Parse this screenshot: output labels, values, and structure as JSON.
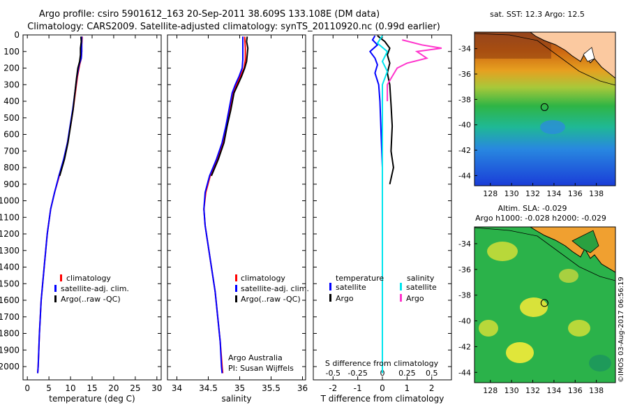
{
  "header": {
    "line1": "Argo profile: csiro 5901612_163 20-Sep-2011 38.609S 133.108E (DM data)",
    "line2": "Climatology: CARS2009. Satellite-adjusted climatology: synTS_20110920.nc (0.99d earlier)"
  },
  "copyright": "©IMOS 03-Aug-2017 06:56:19",
  "colors": {
    "climatology": "#ff0000",
    "satellite": "#0000ff",
    "argo": "#000000",
    "argo_salinity_diff": "#ff33cc",
    "satellite_salinity_diff": "#00e5ee"
  },
  "chart_data": [
    {
      "type": "line",
      "id": "temperature",
      "xlabel": "temperature (deg C)",
      "xlim": [
        -1,
        31
      ],
      "xticks": [
        0,
        5,
        10,
        15,
        20,
        25,
        30
      ],
      "ylim": [
        2080,
        0
      ],
      "yticks": [
        0,
        100,
        200,
        300,
        400,
        500,
        600,
        700,
        800,
        900,
        1000,
        1100,
        1200,
        1300,
        1400,
        1500,
        1600,
        1700,
        1800,
        1900,
        2000
      ],
      "legend": [
        "climatology",
        "satellite-adj. clim.",
        "Argo(..raw -QC)"
      ],
      "series": [
        {
          "name": "climatology",
          "points": [
            [
              12.7,
              10
            ],
            [
              12.6,
              60
            ],
            [
              12.6,
              100
            ],
            [
              12.5,
              140
            ],
            [
              12.1,
              180
            ],
            [
              11.6,
              250
            ],
            [
              11.1,
              350
            ],
            [
              10.6,
              450
            ],
            [
              10.0,
              550
            ],
            [
              9.3,
              650
            ],
            [
              8.5,
              750
            ],
            [
              7.4,
              850
            ],
            [
              6.3,
              950
            ],
            [
              5.4,
              1050
            ],
            [
              4.6,
              1200
            ],
            [
              3.9,
              1400
            ],
            [
              3.2,
              1600
            ],
            [
              2.8,
              1800
            ],
            [
              2.5,
              2000
            ],
            [
              2.4,
              2040
            ]
          ]
        },
        {
          "name": "satellite-adj. clim.",
          "points": [
            [
              12.6,
              10
            ],
            [
              12.6,
              60
            ],
            [
              12.6,
              100
            ],
            [
              12.5,
              140
            ],
            [
              12.0,
              180
            ],
            [
              11.5,
              250
            ],
            [
              11.0,
              350
            ],
            [
              10.5,
              450
            ],
            [
              9.9,
              550
            ],
            [
              9.3,
              650
            ],
            [
              8.4,
              750
            ],
            [
              7.3,
              850
            ],
            [
              6.3,
              950
            ],
            [
              5.4,
              1050
            ],
            [
              4.6,
              1200
            ],
            [
              3.9,
              1400
            ],
            [
              3.2,
              1600
            ],
            [
              2.8,
              1800
            ],
            [
              2.5,
              2000
            ],
            [
              2.4,
              2040
            ]
          ]
        },
        {
          "name": "Argo(..raw -QC)",
          "points": [
            [
              12.4,
              10
            ],
            [
              12.5,
              40
            ],
            [
              12.3,
              80
            ],
            [
              12.3,
              120
            ],
            [
              12.1,
              160
            ],
            [
              11.7,
              200
            ],
            [
              11.4,
              260
            ],
            [
              11.0,
              350
            ],
            [
              10.6,
              450
            ],
            [
              10.0,
              550
            ],
            [
              9.4,
              650
            ],
            [
              8.6,
              750
            ],
            [
              7.5,
              850
            ]
          ]
        }
      ]
    },
    {
      "type": "line",
      "id": "salinity",
      "xlabel": "salinity",
      "xlim": [
        33.85,
        36.05
      ],
      "xticks": [
        34,
        34.5,
        35,
        35.5,
        36
      ],
      "xticklabels": [
        "34",
        "34.5",
        "35",
        "35.5",
        "36"
      ],
      "ylim": [
        2080,
        0
      ],
      "legend": [
        "climatology",
        "satellite-adj. clim.",
        "Argo(..raw -QC)"
      ],
      "annotation": [
        "Argo Australia",
        "PI: Susan Wijffels"
      ],
      "series": [
        {
          "name": "climatology",
          "points": [
            [
              35.08,
              10
            ],
            [
              35.09,
              80
            ],
            [
              35.09,
              150
            ],
            [
              35.07,
              200
            ],
            [
              35.01,
              250
            ],
            [
              34.95,
              300
            ],
            [
              34.89,
              350
            ],
            [
              34.84,
              450
            ],
            [
              34.79,
              550
            ],
            [
              34.73,
              650
            ],
            [
              34.64,
              750
            ],
            [
              34.53,
              850
            ],
            [
              34.46,
              950
            ],
            [
              34.43,
              1050
            ],
            [
              34.45,
              1150
            ],
            [
              34.49,
              1250
            ],
            [
              34.55,
              1400
            ],
            [
              34.61,
              1550
            ],
            [
              34.65,
              1700
            ],
            [
              34.69,
              1850
            ],
            [
              34.72,
              2000
            ],
            [
              34.73,
              2040
            ]
          ]
        },
        {
          "name": "satellite-adj. clim.",
          "points": [
            [
              35.05,
              10
            ],
            [
              35.05,
              80
            ],
            [
              35.05,
              150
            ],
            [
              35.04,
              200
            ],
            [
              34.99,
              250
            ],
            [
              34.93,
              300
            ],
            [
              34.88,
              350
            ],
            [
              34.83,
              450
            ],
            [
              34.78,
              550
            ],
            [
              34.72,
              650
            ],
            [
              34.63,
              750
            ],
            [
              34.52,
              850
            ],
            [
              34.45,
              950
            ],
            [
              34.43,
              1050
            ],
            [
              34.45,
              1150
            ],
            [
              34.49,
              1250
            ],
            [
              34.55,
              1400
            ],
            [
              34.61,
              1550
            ],
            [
              34.65,
              1700
            ],
            [
              34.69,
              1850
            ],
            [
              34.71,
              2000
            ],
            [
              34.72,
              2040
            ]
          ]
        },
        {
          "name": "Argo(..raw -QC)",
          "points": [
            [
              35.12,
              10
            ],
            [
              35.11,
              40
            ],
            [
              35.13,
              80
            ],
            [
              35.12,
              120
            ],
            [
              35.11,
              160
            ],
            [
              35.08,
              200
            ],
            [
              35.03,
              250
            ],
            [
              34.97,
              300
            ],
            [
              34.91,
              350
            ],
            [
              34.86,
              450
            ],
            [
              34.8,
              550
            ],
            [
              34.75,
              650
            ],
            [
              34.66,
              750
            ],
            [
              34.55,
              850
            ]
          ]
        }
      ]
    },
    {
      "type": "line",
      "id": "difference",
      "xlabel": "T difference from climatology",
      "xlabel_top": "S difference from climatology",
      "xlim": [
        -2.8,
        2.8
      ],
      "xticks": [
        -2,
        -1,
        0,
        1,
        2
      ],
      "s_xticks": [
        -0.5,
        -0.25,
        0,
        0.25,
        0.5
      ],
      "s_xticklabels": [
        "-0.5",
        "-0.25",
        "0",
        "0.25",
        "0.5"
      ],
      "ylim": [
        2080,
        0
      ],
      "legend": {
        "temperature": [
          "temperature",
          "satellite",
          "Argo"
        ],
        "salinity": [
          "salinity",
          "satellite",
          "Argo"
        ]
      },
      "series": [
        {
          "name": "satellite",
          "group": "temperature",
          "points": [
            [
              -0.3,
              5
            ],
            [
              -0.4,
              30
            ],
            [
              -0.2,
              60
            ],
            [
              -0.5,
              100
            ],
            [
              -0.3,
              140
            ],
            [
              -0.2,
              180
            ],
            [
              -0.3,
              230
            ],
            [
              -0.15,
              300
            ],
            [
              -0.1,
              400
            ],
            [
              -0.05,
              600
            ],
            [
              0,
              800
            ],
            [
              0,
              1200
            ],
            [
              0,
              1600
            ],
            [
              0,
              2040
            ]
          ]
        },
        {
          "name": "Argo",
          "group": "temperature",
          "points": [
            [
              -0.2,
              5
            ],
            [
              0.1,
              40
            ],
            [
              0.3,
              80
            ],
            [
              0.2,
              120
            ],
            [
              0.3,
              170
            ],
            [
              0.2,
              230
            ],
            [
              0.3,
              300
            ],
            [
              0.35,
              420
            ],
            [
              0.4,
              550
            ],
            [
              0.35,
              700
            ],
            [
              0.45,
              800
            ],
            [
              0.3,
              900
            ]
          ]
        },
        {
          "name": "satellite",
          "group": "salinity",
          "points": [
            [
              0,
              5
            ],
            [
              -0.05,
              50
            ],
            [
              0.05,
              100
            ],
            [
              0,
              160
            ],
            [
              0.05,
              220
            ],
            [
              0,
              300
            ],
            [
              0,
              500
            ],
            [
              0,
              800
            ],
            [
              0,
              1200
            ],
            [
              0,
              1600
            ],
            [
              0,
              2040
            ]
          ]
        },
        {
          "name": "Argo",
          "group": "salinity",
          "points": [
            [
              0.2,
              30
            ],
            [
              0.4,
              60
            ],
            [
              0.6,
              80
            ],
            [
              0.35,
              100
            ],
            [
              0.45,
              140
            ],
            [
              0.25,
              170
            ],
            [
              0.15,
              200
            ],
            [
              0.1,
              250
            ],
            [
              0.05,
              300
            ],
            [
              0.05,
              400
            ]
          ]
        }
      ]
    },
    {
      "type": "heatmap",
      "id": "sst_map",
      "title": "sat. SST: 12.3 Argo: 12.5",
      "xlim": [
        126.5,
        139.8
      ],
      "ylim": [
        -44.8,
        -32.7
      ],
      "xticks": [
        128,
        130,
        132,
        134,
        136,
        138
      ],
      "yticks": [
        -34,
        -36,
        -38,
        -40,
        -42,
        -44
      ],
      "marker": {
        "lon": 133.108,
        "lat": -38.609
      }
    },
    {
      "type": "heatmap",
      "id": "sla_map",
      "title_line1": "Altim. SLA: -0.029",
      "title_line2": "Argo h1000: -0.028 h2000: -0.029",
      "xlim": [
        126.5,
        139.8
      ],
      "ylim": [
        -44.8,
        -32.7
      ],
      "xticks": [
        128,
        130,
        132,
        134,
        136,
        138
      ],
      "yticks": [
        -34,
        -36,
        -38,
        -40,
        -42,
        -44
      ],
      "marker": {
        "lon": 133.108,
        "lat": -38.609
      }
    }
  ]
}
